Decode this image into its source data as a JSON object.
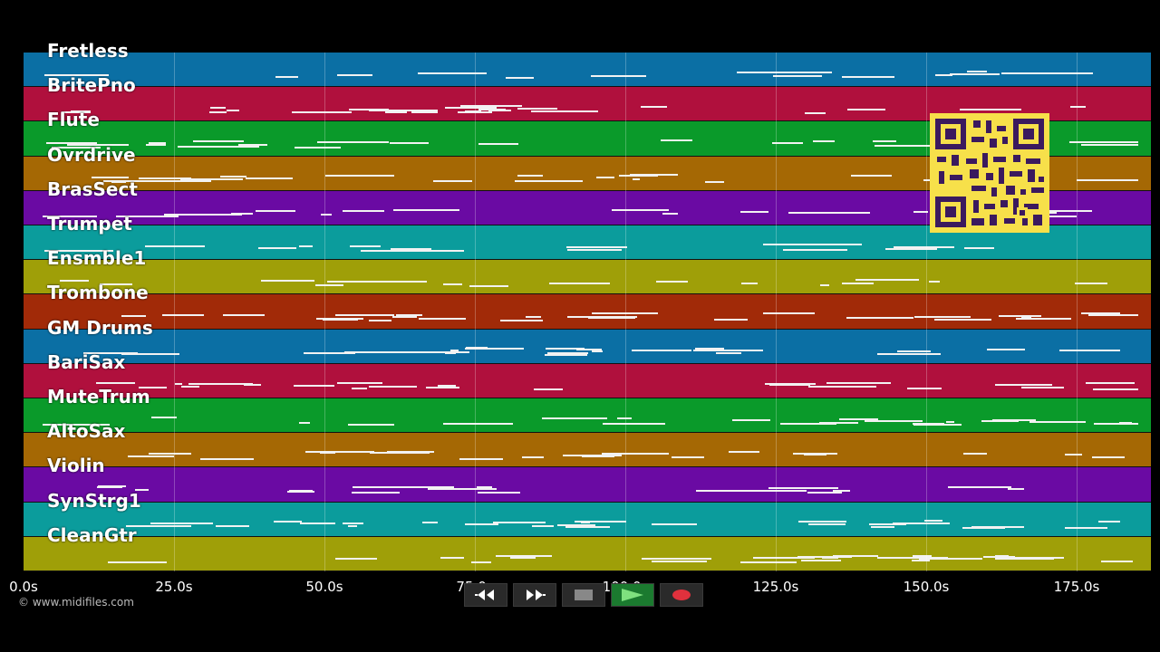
{
  "tracks": [
    {
      "name": "Fretless",
      "color": "#0b6fa4"
    },
    {
      "name": "BritePno",
      "color": "#b0103d"
    },
    {
      "name": "Flute",
      "color": "#0a9a2a"
    },
    {
      "name": "Ovrdrive",
      "color": "#a56804"
    },
    {
      "name": "BrasSect",
      "color": "#6a0aa3"
    },
    {
      "name": "Trumpet",
      "color": "#0b9c9c"
    },
    {
      "name": "Ensmble1",
      "color": "#9f9f08"
    },
    {
      "name": "Trombone",
      "color": "#a12a08"
    },
    {
      "name": "GM Drums",
      "color": "#0b6fa4"
    },
    {
      "name": "BariSax",
      "color": "#b0103d"
    },
    {
      "name": "MuteTrum",
      "color": "#0a9a2a"
    },
    {
      "name": "AltoSax",
      "color": "#a56804"
    },
    {
      "name": "Violin",
      "color": "#6a0aa3"
    },
    {
      "name": "SynStrg1",
      "color": "#0b9c9c"
    },
    {
      "name": "CleanGtr",
      "color": "#9f9f08"
    }
  ],
  "timeline": {
    "ticks": [
      "0.0s",
      "25.0s",
      "50.0s",
      "75.0s",
      "100.0s",
      "125.0s",
      "150.0s",
      "175.0s"
    ]
  },
  "copyright": "© www.midifiles.com",
  "controls": {
    "rewind": "rewind-icon",
    "fast_forward": "fast-forward-icon",
    "stop": "stop-icon",
    "play": "play-icon",
    "record": "record-icon"
  }
}
